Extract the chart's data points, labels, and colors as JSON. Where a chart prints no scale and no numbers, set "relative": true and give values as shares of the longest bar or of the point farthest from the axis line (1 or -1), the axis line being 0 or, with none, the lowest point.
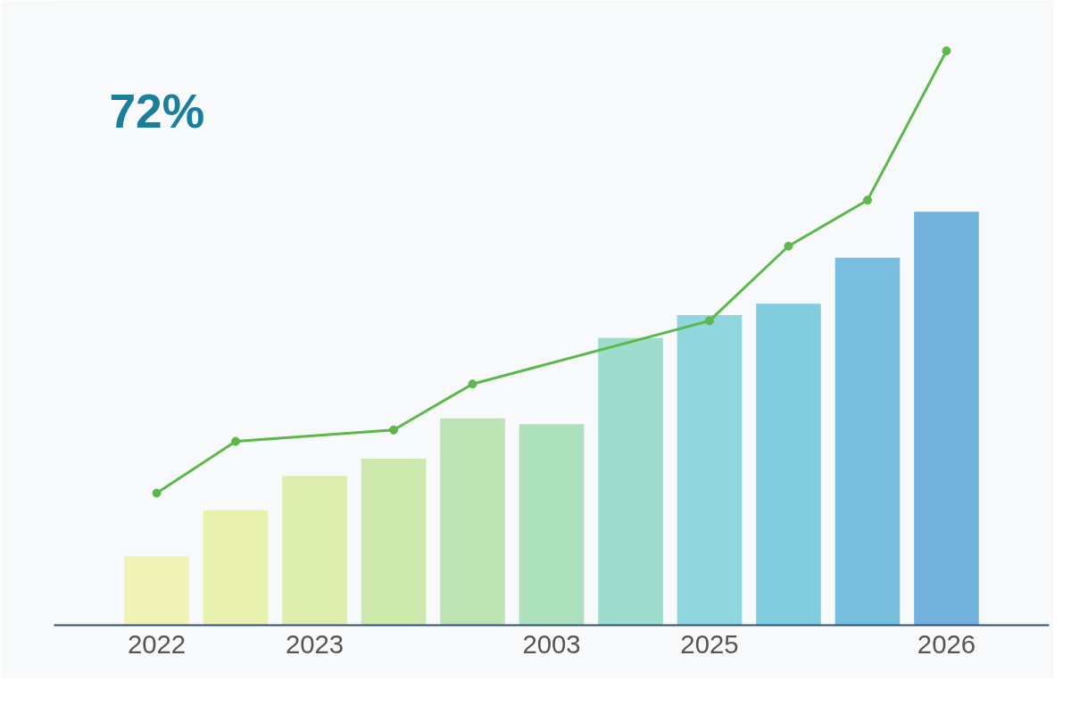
{
  "chart_data": {
    "type": "bar",
    "relative": true,
    "categories": [
      "2022",
      null,
      "2023",
      null,
      null,
      "2003",
      null,
      "2025",
      null,
      null,
      "2026"
    ],
    "series": [
      {
        "values": [
          0.12,
          0.2,
          0.26,
          0.29,
          0.36,
          0.35,
          0.5,
          0.54,
          0.56,
          0.64,
          0.72
        ],
        "colors": [
          "#eef2a8",
          "#e6f0a0",
          "#d8eca0",
          "#c6e6a0",
          "#b2e0a8",
          "#a0dcb0",
          "#8ed8c4",
          "#7ed0d8",
          "#6cc4d8",
          "#62b4d8",
          "#5aa4d6"
        ]
      },
      {
        "type": "line",
        "color": "#5cb84a",
        "values": [
          0.23,
          0.32,
          null,
          0.34,
          0.42,
          null,
          null,
          0.53,
          0.66,
          0.74,
          1.0
        ]
      }
    ],
    "marker": "circle",
    "annotations": [
      "72%"
    ]
  }
}
